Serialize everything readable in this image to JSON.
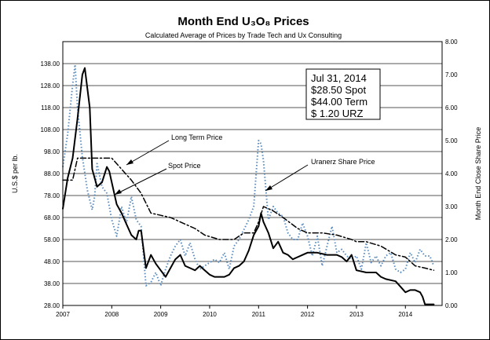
{
  "chart_data": {
    "type": "line",
    "title": "Month End U₃O₈ Prices",
    "subtitle": "Calculated Average of Prices by Trade Tech and Ux Consulting",
    "ylabel": "U.S.$ per lb.",
    "y2label": "Month End Close Share Price",
    "xlim": [
      2007,
      2014.75
    ],
    "ylim": [
      28,
      148
    ],
    "y2lim": [
      0,
      8
    ],
    "x_ticks": [
      "2007",
      "2008",
      "2009",
      "2010",
      "2011",
      "2012",
      "2013",
      "2014"
    ],
    "y_ticks": [
      "28.00",
      "38.00",
      "48.00",
      "58.00",
      "68.00",
      "78.00",
      "88.00",
      "98.00",
      "108.00",
      "118.00",
      "128.00",
      "138.00"
    ],
    "y2_ticks": [
      "0.00",
      "1.00",
      "2.00",
      "3.00",
      "4.00",
      "5.00",
      "6.00",
      "7.00",
      "8.00"
    ],
    "gridlines": true,
    "series": [
      {
        "name": "Spot Price",
        "axis": "left",
        "color": "#000000",
        "style": "solid",
        "x": [
          2007.0,
          2007.1,
          2007.2,
          2007.3,
          2007.4,
          2007.45,
          2007.55,
          2007.6,
          2007.7,
          2007.8,
          2007.9,
          2007.95,
          2008.0,
          2008.1,
          2008.2,
          2008.3,
          2008.4,
          2008.5,
          2008.55,
          2008.6,
          2008.7,
          2008.8,
          2008.9,
          2009.0,
          2009.1,
          2009.2,
          2009.3,
          2009.4,
          2009.5,
          2009.6,
          2009.7,
          2009.8,
          2009.9,
          2010.0,
          2010.1,
          2010.2,
          2010.3,
          2010.4,
          2010.5,
          2010.6,
          2010.7,
          2010.8,
          2010.9,
          2011.0,
          2011.05,
          2011.1,
          2011.2,
          2011.3,
          2011.4,
          2011.5,
          2011.6,
          2011.7,
          2011.8,
          2011.9,
          2012.0,
          2012.2,
          2012.4,
          2012.5,
          2012.6,
          2012.7,
          2012.8,
          2012.9,
          2013.0,
          2013.2,
          2013.4,
          2013.5,
          2013.6,
          2013.8,
          2014.0,
          2014.1,
          2014.2,
          2014.3,
          2014.35,
          2014.4,
          2014.5,
          2014.58
        ],
        "values": [
          72,
          86,
          95,
          113,
          133,
          136,
          118,
          90,
          82,
          84,
          91,
          89,
          84,
          74,
          70,
          65,
          60,
          58,
          62,
          62,
          45,
          51,
          47,
          44,
          41,
          45,
          49,
          51,
          46,
          45,
          44,
          46,
          44,
          42,
          41,
          41,
          41,
          42,
          45,
          46,
          48,
          53,
          60,
          64,
          70,
          66,
          61,
          54,
          57,
          52,
          51,
          49,
          50,
          51,
          52,
          52,
          51,
          51,
          51,
          50,
          48,
          51,
          44,
          43,
          43,
          41,
          40,
          39,
          34,
          35,
          35,
          34,
          32,
          28.5,
          28.5,
          28.5
        ]
      },
      {
        "name": "Long Term Price",
        "axis": "left",
        "color": "#000000",
        "style": "dashdot",
        "x": [
          2007.0,
          2007.2,
          2007.3,
          2007.5,
          2007.8,
          2008.0,
          2008.2,
          2008.4,
          2008.6,
          2008.8,
          2009.0,
          2009.2,
          2009.5,
          2009.7,
          2009.9,
          2010.2,
          2010.5,
          2010.7,
          2010.9,
          2011.0,
          2011.1,
          2011.3,
          2011.5,
          2011.8,
          2012.0,
          2012.3,
          2012.6,
          2012.9,
          2013.0,
          2013.2,
          2013.5,
          2013.8,
          2014.0,
          2014.2,
          2014.4,
          2014.58
        ],
        "values": [
          85,
          85,
          95,
          95,
          95,
          95,
          90,
          85,
          79,
          70,
          69,
          68,
          65,
          63,
          60,
          58,
          58,
          61,
          61,
          66,
          73,
          71,
          68,
          63,
          61,
          61,
          60,
          58,
          57,
          57,
          55,
          51,
          50,
          46,
          45,
          44
        ]
      },
      {
        "name": "Uranerz Share Price",
        "axis": "right",
        "color": "#5b8cbf",
        "style": "dotted",
        "x": [
          2007.0,
          2007.1,
          2007.2,
          2007.25,
          2007.3,
          2007.4,
          2007.5,
          2007.6,
          2007.65,
          2007.7,
          2007.8,
          2007.9,
          2008.0,
          2008.1,
          2008.2,
          2008.3,
          2008.4,
          2008.5,
          2008.6,
          2008.7,
          2008.8,
          2008.9,
          2009.0,
          2009.1,
          2009.2,
          2009.3,
          2009.4,
          2009.5,
          2009.6,
          2009.7,
          2009.8,
          2009.9,
          2010.0,
          2010.1,
          2010.2,
          2010.3,
          2010.4,
          2010.5,
          2010.6,
          2010.7,
          2010.8,
          2010.9,
          2011.0,
          2011.05,
          2011.1,
          2011.2,
          2011.3,
          2011.4,
          2011.5,
          2011.6,
          2011.7,
          2011.8,
          2011.9,
          2012.0,
          2012.1,
          2012.2,
          2012.3,
          2012.4,
          2012.5,
          2012.6,
          2012.7,
          2012.8,
          2012.9,
          2013.0,
          2013.1,
          2013.2,
          2013.3,
          2013.4,
          2013.5,
          2013.6,
          2013.7,
          2013.8,
          2013.9,
          2014.0,
          2014.1,
          2014.2,
          2014.3,
          2014.4,
          2014.5,
          2014.58
        ],
        "values": [
          4.2,
          5.2,
          6.7,
          7.3,
          6.0,
          4.5,
          3.5,
          2.9,
          3.3,
          4.3,
          3.6,
          3.4,
          2.6,
          2.1,
          3.0,
          2.5,
          3.3,
          2.6,
          2.4,
          0.6,
          0.7,
          1.0,
          0.6,
          1.1,
          1.5,
          1.8,
          2.0,
          1.5,
          1.9,
          1.4,
          1.1,
          1.2,
          1.3,
          1.4,
          1.3,
          1.6,
          1.1,
          1.8,
          2.0,
          2.3,
          2.6,
          3.0,
          5.0,
          4.9,
          4.4,
          2.6,
          3.0,
          2.8,
          2.7,
          2.2,
          2.0,
          2.0,
          2.5,
          2.1,
          1.5,
          2.1,
          1.2,
          1.8,
          2.4,
          1.6,
          1.7,
          1.5,
          1.4,
          1.5,
          1.1,
          1.9,
          1.3,
          1.5,
          1.2,
          1.5,
          1.6,
          1.1,
          1.0,
          1.1,
          1.6,
          1.3,
          1.7,
          1.5,
          1.5,
          1.2
        ]
      }
    ],
    "annotations": {
      "long_term": "Long Term Price",
      "spot": "Spot Price",
      "uranerz": "Uranerz Share Price"
    },
    "info_box": {
      "date": "Jul 31, 2014",
      "spot": "$28.50  Spot",
      "term": "$44.00  Term",
      "urz": "$  1.20   URZ"
    }
  }
}
